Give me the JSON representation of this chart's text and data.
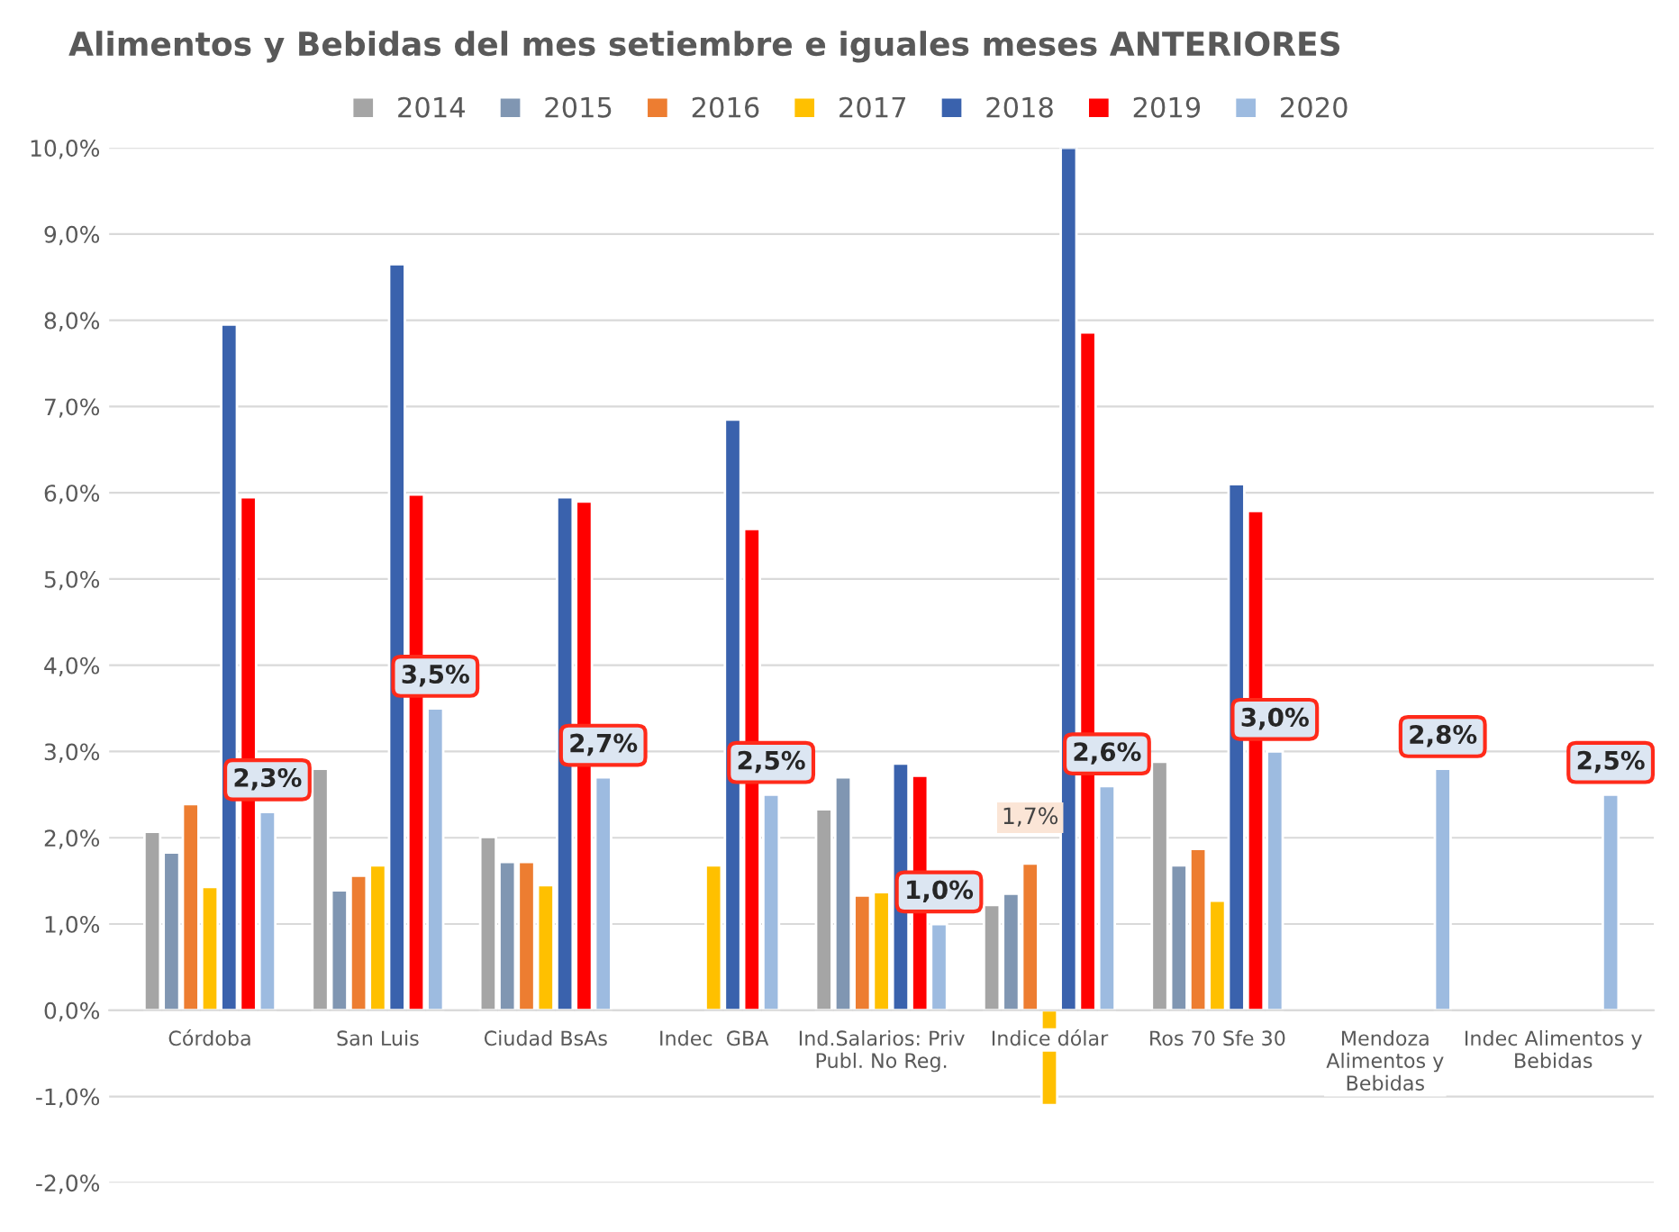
{
  "chart_data": {
    "type": "bar",
    "title": "Alimentos y Bebidas del mes setiembre e iguales meses ANTERIORES",
    "categories": [
      "Córdoba",
      "San Luis",
      "Ciudad BsAs",
      "Indec  GBA",
      "Ind.Salarios: Priv\nPubl. No Reg.",
      "Indice dólar",
      "Ros 70 Sfe 30",
      "Mendoza\nAlimentos y\nBebidas",
      "Indec Alimentos y\nBebidas"
    ],
    "series": [
      {
        "name": "2014",
        "color": "#a5a5a5",
        "values": [
          2.07,
          2.8,
          2.01,
          null,
          2.33,
          1.22,
          2.88,
          null,
          null
        ]
      },
      {
        "name": "2015",
        "color": "#8096b2",
        "values": [
          1.83,
          1.39,
          1.72,
          null,
          2.7,
          1.35,
          1.68,
          null,
          null
        ]
      },
      {
        "name": "2016",
        "color": "#ed7d31",
        "values": [
          2.39,
          1.56,
          1.72,
          null,
          1.33,
          1.7,
          1.87,
          null,
          null
        ],
        "value_labels": [
          null,
          null,
          null,
          null,
          null,
          "1,7%",
          null,
          null,
          null
        ]
      },
      {
        "name": "2017",
        "color": "#ffc000",
        "values": [
          1.43,
          1.68,
          1.45,
          1.68,
          1.37,
          -1.1,
          1.27,
          null,
          null
        ]
      },
      {
        "name": "2018",
        "color": "#3a62ad",
        "values": [
          7.95,
          8.65,
          5.95,
          6.85,
          2.86,
          10.0,
          6.1,
          null,
          null
        ]
      },
      {
        "name": "2019",
        "color": "#ff0000",
        "values": [
          5.95,
          5.98,
          5.9,
          5.58,
          2.72,
          7.86,
          5.79,
          null,
          null
        ]
      },
      {
        "name": "2020",
        "color": "#9dbbe0",
        "values": [
          2.3,
          3.5,
          2.7,
          2.5,
          1.0,
          2.6,
          3.0,
          2.8,
          2.5
        ],
        "value_labels": [
          "2,3%",
          "3,5%",
          "2,7%",
          "2,5%",
          "1,0%",
          "2,6%",
          "3,0%",
          "2,8%",
          "2,5%"
        ]
      }
    ],
    "ylim": [
      -2.0,
      10.0
    ],
    "yticks": [
      {
        "value": -2,
        "label": "-2,0%"
      },
      {
        "value": -1,
        "label": "-1,0%"
      },
      {
        "value": 0,
        "label": "0,0%"
      },
      {
        "value": 1,
        "label": "1,0%"
      },
      {
        "value": 2,
        "label": "2,0%"
      },
      {
        "value": 3,
        "label": "3,0%"
      },
      {
        "value": 4,
        "label": "4,0%"
      },
      {
        "value": 5,
        "label": "5,0%"
      },
      {
        "value": 6,
        "label": "6,0%"
      },
      {
        "value": 7,
        "label": "7,0%"
      },
      {
        "value": 8,
        "label": "8,0%"
      },
      {
        "value": 9,
        "label": "9,0%"
      },
      {
        "value": 10,
        "label": "10,0%"
      }
    ],
    "grid": "y",
    "legend": "top"
  }
}
